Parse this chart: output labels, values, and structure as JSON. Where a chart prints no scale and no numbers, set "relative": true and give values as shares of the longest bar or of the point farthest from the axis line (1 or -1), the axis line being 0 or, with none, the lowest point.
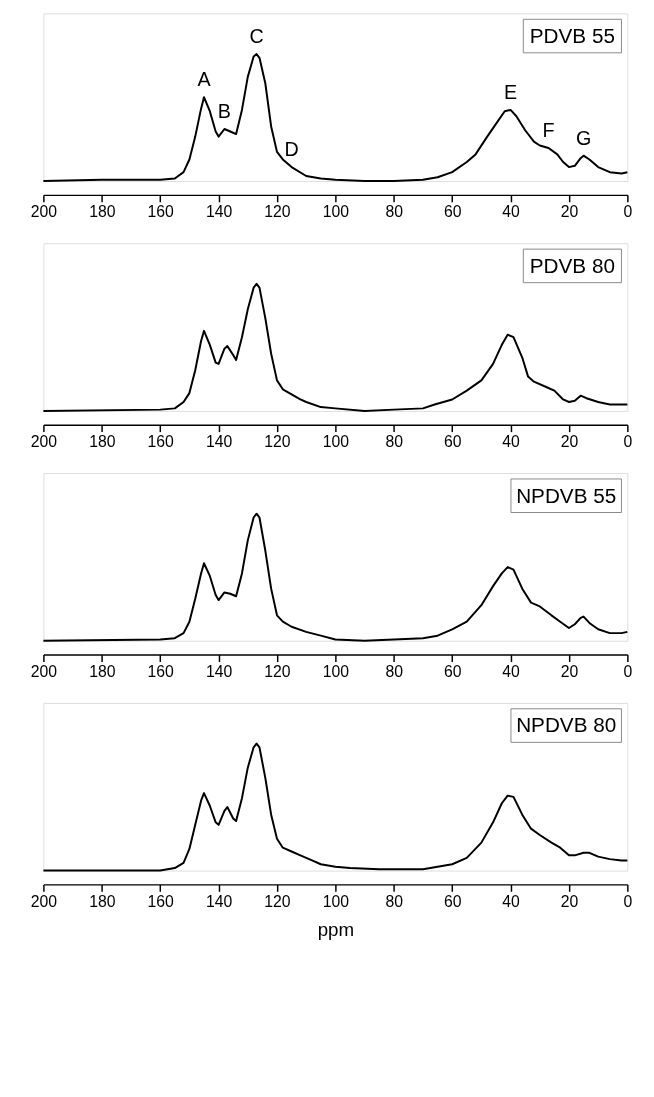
{
  "chart_data": [
    {
      "type": "line",
      "relative": true,
      "xlim": [
        200,
        0
      ],
      "tick_labels": "x",
      "xticks": [
        200,
        180,
        160,
        140,
        120,
        100,
        80,
        60,
        40,
        20,
        0
      ],
      "x": [
        200,
        180,
        160,
        155,
        152,
        150,
        148,
        146,
        145,
        143,
        141,
        140,
        138,
        136,
        134,
        132,
        130,
        128,
        127,
        126,
        124,
        122,
        120,
        118,
        115,
        110,
        105,
        100,
        90,
        80,
        70,
        65,
        60,
        55,
        52,
        48,
        45,
        42,
        40,
        38,
        35,
        32,
        30,
        27,
        24,
        22,
        20,
        18,
        16,
        15,
        13,
        10,
        6,
        2,
        0
      ],
      "series": [
        {
          "color": "#000000",
          "values": [
            0.0,
            0.01,
            0.01,
            0.02,
            0.07,
            0.17,
            0.35,
            0.57,
            0.66,
            0.55,
            0.39,
            0.35,
            0.41,
            0.39,
            0.37,
            0.56,
            0.82,
            0.98,
            1.0,
            0.97,
            0.77,
            0.43,
            0.23,
            0.17,
            0.11,
            0.04,
            0.02,
            0.01,
            0.0,
            0.0,
            0.01,
            0.03,
            0.07,
            0.15,
            0.21,
            0.35,
            0.45,
            0.55,
            0.56,
            0.51,
            0.4,
            0.31,
            0.28,
            0.26,
            0.21,
            0.15,
            0.11,
            0.12,
            0.18,
            0.2,
            0.17,
            0.11,
            0.07,
            0.06,
            0.07
          ]
        }
      ],
      "annotations": [
        "PDVB 55",
        {
          "text": "A",
          "x": 145,
          "y": 0.66
        },
        {
          "text": "B",
          "x": 138,
          "y": 0.41
        },
        {
          "text": "C",
          "x": 127,
          "y": 1.0
        },
        {
          "text": "D",
          "x": 115,
          "y": 0.11
        },
        {
          "text": "E",
          "x": 40,
          "y": 0.56
        },
        {
          "text": "F",
          "x": 27,
          "y": 0.26
        },
        {
          "text": "G",
          "x": 15,
          "y": 0.2
        }
      ]
    },
    {
      "type": "line",
      "relative": true,
      "xlim": [
        200,
        0
      ],
      "tick_labels": "x",
      "xticks": [
        200,
        180,
        160,
        140,
        120,
        100,
        80,
        60,
        40,
        20,
        0
      ],
      "x": [
        200,
        160,
        155,
        152,
        150,
        148,
        146,
        145,
        143,
        141,
        140,
        138,
        137,
        135,
        134,
        132,
        130,
        128,
        127,
        126,
        124,
        122,
        120,
        118,
        115,
        112,
        110,
        105,
        100,
        90,
        80,
        70,
        66,
        60,
        55,
        50,
        46,
        43,
        41,
        39,
        36,
        34,
        32,
        28,
        25,
        22,
        20,
        18,
        16,
        14,
        10,
        6,
        0
      ],
      "series": [
        {
          "color": "#000000",
          "values": [
            0.0,
            0.01,
            0.02,
            0.07,
            0.14,
            0.32,
            0.55,
            0.63,
            0.52,
            0.38,
            0.37,
            0.49,
            0.51,
            0.44,
            0.4,
            0.58,
            0.8,
            0.97,
            1.0,
            0.97,
            0.73,
            0.45,
            0.24,
            0.17,
            0.13,
            0.09,
            0.07,
            0.03,
            0.02,
            0.0,
            0.01,
            0.02,
            0.05,
            0.09,
            0.16,
            0.24,
            0.37,
            0.52,
            0.6,
            0.58,
            0.42,
            0.27,
            0.23,
            0.19,
            0.16,
            0.09,
            0.07,
            0.08,
            0.12,
            0.1,
            0.07,
            0.05,
            0.05
          ]
        }
      ],
      "annotations": [
        "PDVB 80"
      ]
    },
    {
      "type": "line",
      "relative": true,
      "xlim": [
        200,
        0
      ],
      "tick_labels": "x",
      "xticks": [
        200,
        180,
        160,
        140,
        120,
        100,
        80,
        60,
        40,
        20,
        0
      ],
      "x": [
        200,
        160,
        155,
        152,
        150,
        148,
        146,
        145,
        143,
        141,
        140,
        138,
        136,
        134,
        132,
        130,
        128,
        127,
        126,
        124,
        122,
        120,
        118,
        115,
        110,
        105,
        100,
        90,
        80,
        70,
        65,
        60,
        55,
        50,
        46,
        43,
        41,
        39,
        36,
        33,
        30,
        26,
        23,
        20,
        18,
        16,
        15,
        13,
        10,
        6,
        2,
        0
      ],
      "series": [
        {
          "color": "#000000",
          "values": [
            0.0,
            0.01,
            0.02,
            0.06,
            0.15,
            0.33,
            0.53,
            0.61,
            0.51,
            0.36,
            0.32,
            0.38,
            0.37,
            0.35,
            0.53,
            0.79,
            0.97,
            1.0,
            0.97,
            0.71,
            0.41,
            0.2,
            0.15,
            0.11,
            0.07,
            0.04,
            0.01,
            0.0,
            0.01,
            0.02,
            0.04,
            0.09,
            0.15,
            0.28,
            0.43,
            0.53,
            0.58,
            0.56,
            0.41,
            0.3,
            0.27,
            0.2,
            0.15,
            0.1,
            0.13,
            0.18,
            0.19,
            0.14,
            0.09,
            0.06,
            0.06,
            0.07
          ]
        }
      ],
      "annotations": [
        "NPDVB 55"
      ]
    },
    {
      "type": "line",
      "relative": true,
      "xlim": [
        200,
        0
      ],
      "xlabel": "ppm",
      "tick_labels": "x",
      "xticks": [
        200,
        180,
        160,
        140,
        120,
        100,
        80,
        60,
        40,
        20,
        0
      ],
      "x": [
        200,
        160,
        155,
        152,
        150,
        148,
        146,
        145,
        143,
        141,
        140,
        138,
        137,
        135,
        134,
        132,
        130,
        128,
        127,
        126,
        124,
        122,
        120,
        118,
        115,
        112,
        108,
        105,
        100,
        95,
        85,
        80,
        70,
        65,
        60,
        55,
        50,
        46,
        43,
        41,
        39,
        36,
        33,
        30,
        26,
        23,
        20,
        18,
        15,
        13,
        10,
        6,
        2,
        0
      ],
      "series": [
        {
          "color": "#000000",
          "values": [
            0.0,
            0.0,
            0.02,
            0.06,
            0.17,
            0.36,
            0.55,
            0.61,
            0.51,
            0.38,
            0.36,
            0.47,
            0.5,
            0.41,
            0.39,
            0.57,
            0.81,
            0.97,
            1.0,
            0.97,
            0.73,
            0.44,
            0.25,
            0.18,
            0.15,
            0.12,
            0.08,
            0.05,
            0.03,
            0.02,
            0.01,
            0.01,
            0.01,
            0.03,
            0.05,
            0.1,
            0.22,
            0.38,
            0.53,
            0.59,
            0.58,
            0.44,
            0.33,
            0.28,
            0.22,
            0.18,
            0.12,
            0.12,
            0.14,
            0.14,
            0.11,
            0.09,
            0.08,
            0.08
          ]
        }
      ],
      "annotations": [
        "NPDVB 80"
      ]
    }
  ]
}
